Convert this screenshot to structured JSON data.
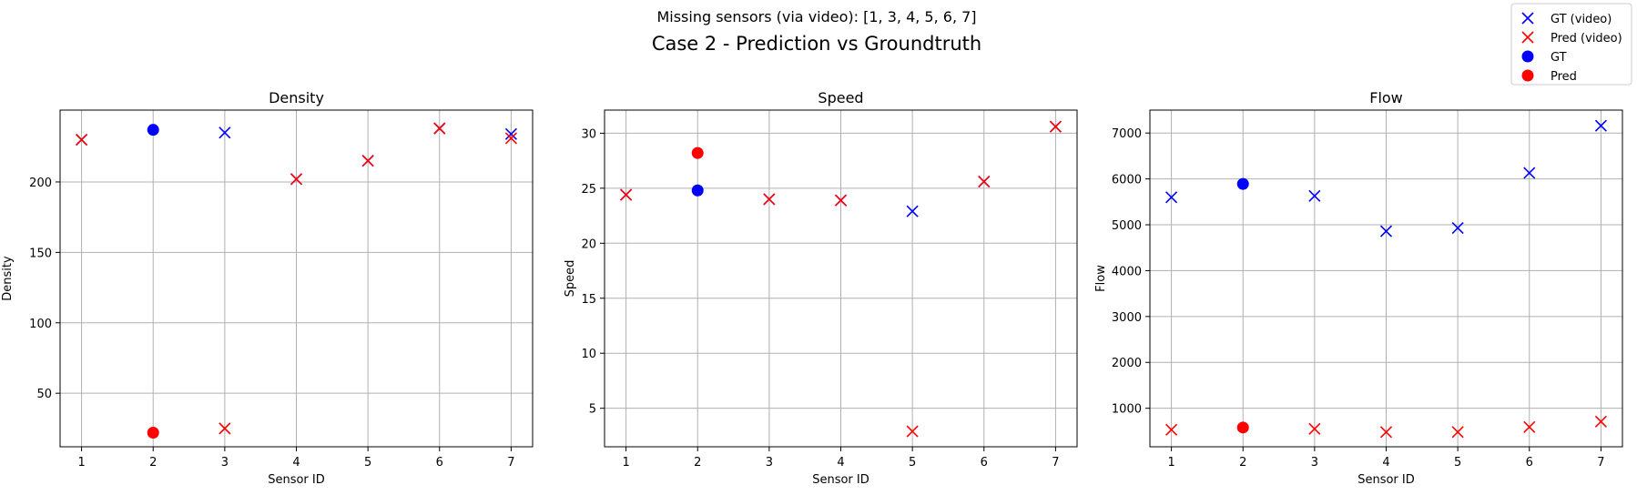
{
  "figure": {
    "suptitle": "Missing sensors (via video): [1, 3, 4, 5, 6, 7]",
    "title": "Case 2 - Prediction vs Groundtruth"
  },
  "legend": {
    "placement": "top-right",
    "entries": [
      {
        "label": "GT (video)",
        "marker": "x",
        "color": "#0000ff"
      },
      {
        "label": "Pred (video)",
        "marker": "x",
        "color": "#ff0000"
      },
      {
        "label": "GT",
        "marker": "o",
        "color": "#0000ff"
      },
      {
        "label": "Pred",
        "marker": "o",
        "color": "#ff0000"
      }
    ]
  },
  "colors": {
    "gt": "#0000ff",
    "pred": "#ff0000",
    "grid": "#b0b0b0"
  },
  "chart_data": [
    {
      "type": "scatter",
      "title": "Density",
      "xlabel": "Sensor ID",
      "ylabel": "Density",
      "grid": true,
      "x_ticks": [
        1,
        2,
        3,
        4,
        5,
        6,
        7
      ],
      "y_ticks": [
        50,
        100,
        150,
        200
      ],
      "xlim": [
        0.7,
        7.3
      ],
      "ylim": [
        12,
        251
      ],
      "series": [
        {
          "name": "GT (video)",
          "marker": "x",
          "color": "#0000ff",
          "x": [
            1,
            3,
            4,
            5,
            6,
            7
          ],
          "y": [
            230,
            235,
            202,
            215,
            238,
            234
          ]
        },
        {
          "name": "Pred (video)",
          "marker": "x",
          "color": "#ff0000",
          "x": [
            1,
            3,
            4,
            5,
            6,
            7
          ],
          "y": [
            230,
            25,
            202,
            215,
            238,
            231
          ]
        },
        {
          "name": "GT",
          "marker": "o",
          "color": "#0000ff",
          "x": [
            2
          ],
          "y": [
            237
          ]
        },
        {
          "name": "Pred",
          "marker": "o",
          "color": "#ff0000",
          "x": [
            2
          ],
          "y": [
            22
          ]
        }
      ]
    },
    {
      "type": "scatter",
      "title": "Speed",
      "xlabel": "Sensor ID",
      "ylabel": "Speed",
      "grid": true,
      "x_ticks": [
        1,
        2,
        3,
        4,
        5,
        6,
        7
      ],
      "y_ticks": [
        5,
        10,
        15,
        20,
        25,
        30
      ],
      "xlim": [
        0.7,
        7.3
      ],
      "ylim": [
        1.5,
        32.1
      ],
      "series": [
        {
          "name": "GT (video)",
          "marker": "x",
          "color": "#0000ff",
          "x": [
            1,
            3,
            4,
            5,
            6,
            7
          ],
          "y": [
            24.4,
            24.0,
            23.9,
            22.9,
            25.6,
            30.6
          ]
        },
        {
          "name": "Pred (video)",
          "marker": "x",
          "color": "#ff0000",
          "x": [
            1,
            3,
            4,
            5,
            6,
            7
          ],
          "y": [
            24.4,
            24.0,
            23.9,
            2.9,
            25.6,
            30.6
          ]
        },
        {
          "name": "GT",
          "marker": "o",
          "color": "#0000ff",
          "x": [
            2
          ],
          "y": [
            24.8
          ]
        },
        {
          "name": "Pred",
          "marker": "o",
          "color": "#ff0000",
          "x": [
            2
          ],
          "y": [
            28.2
          ]
        }
      ]
    },
    {
      "type": "scatter",
      "title": "Flow",
      "xlabel": "Sensor ID",
      "ylabel": "Flow",
      "grid": true,
      "x_ticks": [
        1,
        2,
        3,
        4,
        5,
        6,
        7
      ],
      "y_ticks": [
        1000,
        2000,
        3000,
        4000,
        5000,
        6000,
        7000
      ],
      "xlim": [
        0.7,
        7.3
      ],
      "ylim": [
        160,
        7500
      ],
      "series": [
        {
          "name": "GT (video)",
          "marker": "x",
          "color": "#0000ff",
          "x": [
            1,
            3,
            4,
            5,
            6,
            7
          ],
          "y": [
            5600,
            5630,
            4860,
            4930,
            6130,
            7160
          ]
        },
        {
          "name": "Pred (video)",
          "marker": "x",
          "color": "#ff0000",
          "x": [
            1,
            3,
            4,
            5,
            6,
            7
          ],
          "y": [
            530,
            550,
            480,
            480,
            590,
            710
          ]
        },
        {
          "name": "GT",
          "marker": "o",
          "color": "#0000ff",
          "x": [
            2
          ],
          "y": [
            5890
          ]
        },
        {
          "name": "Pred",
          "marker": "o",
          "color": "#ff0000",
          "x": [
            2
          ],
          "y": [
            580
          ]
        }
      ]
    }
  ]
}
